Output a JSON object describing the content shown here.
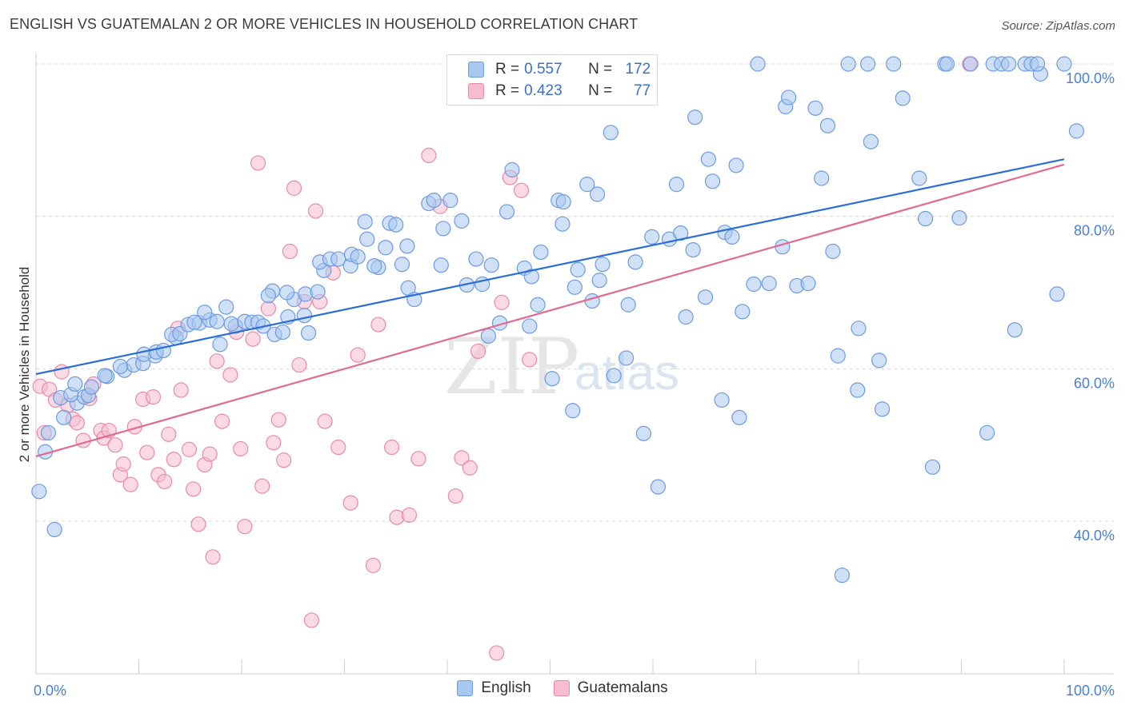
{
  "title": "ENGLISH VS GUATEMALAN 2 OR MORE VEHICLES IN HOUSEHOLD CORRELATION CHART",
  "source": "Source: ZipAtlas.com",
  "watermark": {
    "zip": "ZIP",
    "atlas": "atlas"
  },
  "colors": {
    "english_fill": "#a9c8f0",
    "english_stroke": "#6c9be0",
    "english_line": "#2c6fd3",
    "guat_fill": "#f7bcd0",
    "guat_stroke": "#e88aaa",
    "guat_line": "#e06a94",
    "grid": "#d8d8d8",
    "axis_text": "#4a7fd0"
  },
  "legend": {
    "rows": [
      {
        "r_label": "R =",
        "r_value": "0.557",
        "n_label": "N =",
        "n_value": "172"
      },
      {
        "r_label": "R =",
        "r_value": "0.423",
        "n_label": "N =",
        "n_value": "77"
      }
    ]
  },
  "bottom_legend": {
    "english": "English",
    "guatemalans": "Guatemalans"
  },
  "chart_data": {
    "type": "scatter",
    "title": "ENGLISH VS GUATEMALAN 2 OR MORE VEHICLES IN HOUSEHOLD CORRELATION CHART",
    "xlabel": "",
    "ylabel": "2 or more Vehicles in Household",
    "xlim": [
      0,
      100
    ],
    "ylim": [
      20.5,
      101
    ],
    "x_tick_labels": [
      "0.0%",
      "100.0%"
    ],
    "y_ticks": [
      40,
      60,
      80,
      100
    ],
    "y_tick_labels": [
      "40.0%",
      "60.0%",
      "80.0%",
      "100.0%"
    ],
    "grid": true,
    "legend_position": "top-center",
    "series": [
      {
        "name": "English",
        "trend": {
          "x": [
            0,
            100
          ],
          "y": [
            59.3,
            87.5
          ]
        },
        "points": [
          [
            0.3,
            43.9
          ],
          [
            1.8,
            38.9
          ],
          [
            0.9,
            49.1
          ],
          [
            1.2,
            51.6
          ],
          [
            2.7,
            53.6
          ],
          [
            2.4,
            56.2
          ],
          [
            4.0,
            55.5
          ],
          [
            4.7,
            56.3
          ],
          [
            3.4,
            56.6
          ],
          [
            5.1,
            56.5
          ],
          [
            3.8,
            58.0
          ],
          [
            6.9,
            59.0
          ],
          [
            6.7,
            59.1
          ],
          [
            5.4,
            57.6
          ],
          [
            8.6,
            59.8
          ],
          [
            9.5,
            60.5
          ],
          [
            8.2,
            60.3
          ],
          [
            10.4,
            60.7
          ],
          [
            11.6,
            61.7
          ],
          [
            10.5,
            61.9
          ],
          [
            11.7,
            62.2
          ],
          [
            12.4,
            62.4
          ],
          [
            13.6,
            64.1
          ],
          [
            13.2,
            64.5
          ],
          [
            14.0,
            64.6
          ],
          [
            14.8,
            65.8
          ],
          [
            15.9,
            66.0
          ],
          [
            15.4,
            66.1
          ],
          [
            16.9,
            66.4
          ],
          [
            17.6,
            66.2
          ],
          [
            16.4,
            67.4
          ],
          [
            18.5,
            68.1
          ],
          [
            17.9,
            63.2
          ],
          [
            19.4,
            65.6
          ],
          [
            19.0,
            65.9
          ],
          [
            20.3,
            66.2
          ],
          [
            21.0,
            66.1
          ],
          [
            21.6,
            66.1
          ],
          [
            22.1,
            65.6
          ],
          [
            23.2,
            64.5
          ],
          [
            24.0,
            64.8
          ],
          [
            24.5,
            66.8
          ],
          [
            26.5,
            64.7
          ],
          [
            26.1,
            67.0
          ],
          [
            25.1,
            69.1
          ],
          [
            24.4,
            70.0
          ],
          [
            23.0,
            70.2
          ],
          [
            22.6,
            69.6
          ],
          [
            26.2,
            69.8
          ],
          [
            27.4,
            70.1
          ],
          [
            28.0,
            72.9
          ],
          [
            27.6,
            74.0
          ],
          [
            28.6,
            74.4
          ],
          [
            29.4,
            74.4
          ],
          [
            30.6,
            73.5
          ],
          [
            30.7,
            75.0
          ],
          [
            31.3,
            74.7
          ],
          [
            33.3,
            73.3
          ],
          [
            32.9,
            73.5
          ],
          [
            32.2,
            77.0
          ],
          [
            32.0,
            79.3
          ],
          [
            34.0,
            75.9
          ],
          [
            34.4,
            79.1
          ],
          [
            35.0,
            78.9
          ],
          [
            35.6,
            73.7
          ],
          [
            36.1,
            76.1
          ],
          [
            36.2,
            70.6
          ],
          [
            36.8,
            69.1
          ],
          [
            38.2,
            81.7
          ],
          [
            38.7,
            82.1
          ],
          [
            39.4,
            73.6
          ],
          [
            39.6,
            78.4
          ],
          [
            40.3,
            82.1
          ],
          [
            41.4,
            79.4
          ],
          [
            41.9,
            71.0
          ],
          [
            42.8,
            74.4
          ],
          [
            43.4,
            71.1
          ],
          [
            44.3,
            73.6
          ],
          [
            44.0,
            64.3
          ],
          [
            45.1,
            66.0
          ],
          [
            45.8,
            80.6
          ],
          [
            47.5,
            73.2
          ],
          [
            48.2,
            72.1
          ],
          [
            48.0,
            65.6
          ],
          [
            46.3,
            86.1
          ],
          [
            48.8,
            68.4
          ],
          [
            49.1,
            75.3
          ],
          [
            50.2,
            58.7
          ],
          [
            50.8,
            82.1
          ],
          [
            51.2,
            79.0
          ],
          [
            51.3,
            81.9
          ],
          [
            52.4,
            70.7
          ],
          [
            52.7,
            73.0
          ],
          [
            52.2,
            54.5
          ],
          [
            53.6,
            84.2
          ],
          [
            54.1,
            68.9
          ],
          [
            54.6,
            82.9
          ],
          [
            54.8,
            71.6
          ],
          [
            55.1,
            73.7
          ],
          [
            55.9,
            91.0
          ],
          [
            56.2,
            59.1
          ],
          [
            57.6,
            68.4
          ],
          [
            57.4,
            61.4
          ],
          [
            58.3,
            74.0
          ],
          [
            59.1,
            51.5
          ],
          [
            59.9,
            77.3
          ],
          [
            60.5,
            44.5
          ],
          [
            61.6,
            77.0
          ],
          [
            62.3,
            84.2
          ],
          [
            62.7,
            77.8
          ],
          [
            63.2,
            66.8
          ],
          [
            63.9,
            75.6
          ],
          [
            64.1,
            93.0
          ],
          [
            65.1,
            69.4
          ],
          [
            65.4,
            87.5
          ],
          [
            65.8,
            84.6
          ],
          [
            66.7,
            55.9
          ],
          [
            67.0,
            77.9
          ],
          [
            67.7,
            77.3
          ],
          [
            68.1,
            86.7
          ],
          [
            68.4,
            53.6
          ],
          [
            68.7,
            67.5
          ],
          [
            69.8,
            71.1
          ],
          [
            70.2,
            100.0
          ],
          [
            71.3,
            71.2
          ],
          [
            72.9,
            94.4
          ],
          [
            72.6,
            76.0
          ],
          [
            73.2,
            95.6
          ],
          [
            74.0,
            70.9
          ],
          [
            75.1,
            71.2
          ],
          [
            75.8,
            94.2
          ],
          [
            76.4,
            85.0
          ],
          [
            77.0,
            91.9
          ],
          [
            77.5,
            75.4
          ],
          [
            78.0,
            61.7
          ],
          [
            78.4,
            32.9
          ],
          [
            79.0,
            100.0
          ],
          [
            79.9,
            57.2
          ],
          [
            80.0,
            65.3
          ],
          [
            80.9,
            100.0
          ],
          [
            81.2,
            89.8
          ],
          [
            82.0,
            61.1
          ],
          [
            82.3,
            54.7
          ],
          [
            83.4,
            100.0
          ],
          [
            84.3,
            95.5
          ],
          [
            85.9,
            85.0
          ],
          [
            86.5,
            79.7
          ],
          [
            87.2,
            47.1
          ],
          [
            88.4,
            100.0
          ],
          [
            88.6,
            100.0
          ],
          [
            89.8,
            79.8
          ],
          [
            90.9,
            100.0
          ],
          [
            92.5,
            51.6
          ],
          [
            93.1,
            100.0
          ],
          [
            93.9,
            100.0
          ],
          [
            94.6,
            100.0
          ],
          [
            95.2,
            65.1
          ],
          [
            96.2,
            100.0
          ],
          [
            96.8,
            100.0
          ],
          [
            97.7,
            98.7
          ],
          [
            97.4,
            100.0
          ],
          [
            99.3,
            69.8
          ],
          [
            100.0,
            100.0
          ],
          [
            101.2,
            91.2
          ]
        ]
      },
      {
        "name": "Guatemalans",
        "trend": {
          "x": [
            0,
            100
          ],
          "y": [
            48.5,
            86.8
          ]
        },
        "points": [
          [
            0.4,
            57.7
          ],
          [
            0.8,
            51.6
          ],
          [
            1.3,
            57.3
          ],
          [
            1.9,
            55.9
          ],
          [
            2.5,
            59.6
          ],
          [
            3.1,
            55.2
          ],
          [
            3.6,
            53.4
          ],
          [
            4.0,
            52.9
          ],
          [
            4.6,
            50.6
          ],
          [
            5.2,
            56.1
          ],
          [
            5.6,
            58.0
          ],
          [
            6.3,
            51.9
          ],
          [
            6.6,
            50.9
          ],
          [
            7.1,
            51.9
          ],
          [
            7.7,
            50.0
          ],
          [
            8.2,
            46.1
          ],
          [
            8.5,
            47.5
          ],
          [
            9.2,
            44.8
          ],
          [
            9.6,
            52.4
          ],
          [
            10.4,
            56.0
          ],
          [
            10.8,
            49.0
          ],
          [
            11.4,
            56.3
          ],
          [
            11.9,
            46.1
          ],
          [
            12.5,
            45.2
          ],
          [
            12.9,
            51.4
          ],
          [
            13.4,
            48.1
          ],
          [
            13.8,
            65.3
          ],
          [
            14.1,
            57.2
          ],
          [
            14.9,
            49.4
          ],
          [
            15.3,
            44.2
          ],
          [
            15.8,
            39.6
          ],
          [
            16.4,
            47.4
          ],
          [
            16.9,
            48.8
          ],
          [
            17.2,
            35.3
          ],
          [
            17.6,
            61.0
          ],
          [
            18.1,
            53.1
          ],
          [
            18.9,
            59.2
          ],
          [
            19.5,
            64.8
          ],
          [
            19.9,
            49.5
          ],
          [
            20.3,
            39.3
          ],
          [
            21.1,
            63.9
          ],
          [
            21.6,
            87.0
          ],
          [
            22.0,
            44.6
          ],
          [
            22.6,
            67.9
          ],
          [
            23.1,
            50.3
          ],
          [
            23.6,
            53.3
          ],
          [
            24.1,
            48.0
          ],
          [
            24.7,
            75.4
          ],
          [
            25.1,
            83.7
          ],
          [
            25.6,
            60.5
          ],
          [
            26.1,
            68.8
          ],
          [
            26.8,
            27.0
          ],
          [
            27.2,
            80.7
          ],
          [
            27.6,
            68.8
          ],
          [
            28.1,
            53.1
          ],
          [
            28.9,
            72.6
          ],
          [
            29.4,
            49.7
          ],
          [
            30.6,
            42.4
          ],
          [
            31.3,
            61.8
          ],
          [
            32.8,
            34.2
          ],
          [
            33.3,
            65.8
          ],
          [
            34.6,
            49.7
          ],
          [
            35.1,
            40.5
          ],
          [
            36.3,
            40.8
          ],
          [
            37.2,
            48.2
          ],
          [
            38.2,
            88.0
          ],
          [
            39.3,
            81.3
          ],
          [
            40.8,
            43.3
          ],
          [
            41.4,
            48.3
          ],
          [
            42.2,
            47.0
          ],
          [
            43.0,
            62.3
          ],
          [
            44.8,
            22.7
          ],
          [
            45.3,
            68.7
          ],
          [
            46.1,
            85.1
          ],
          [
            47.2,
            83.4
          ],
          [
            48.0,
            61.2
          ],
          [
            90.8,
            100.0
          ]
        ]
      }
    ]
  }
}
